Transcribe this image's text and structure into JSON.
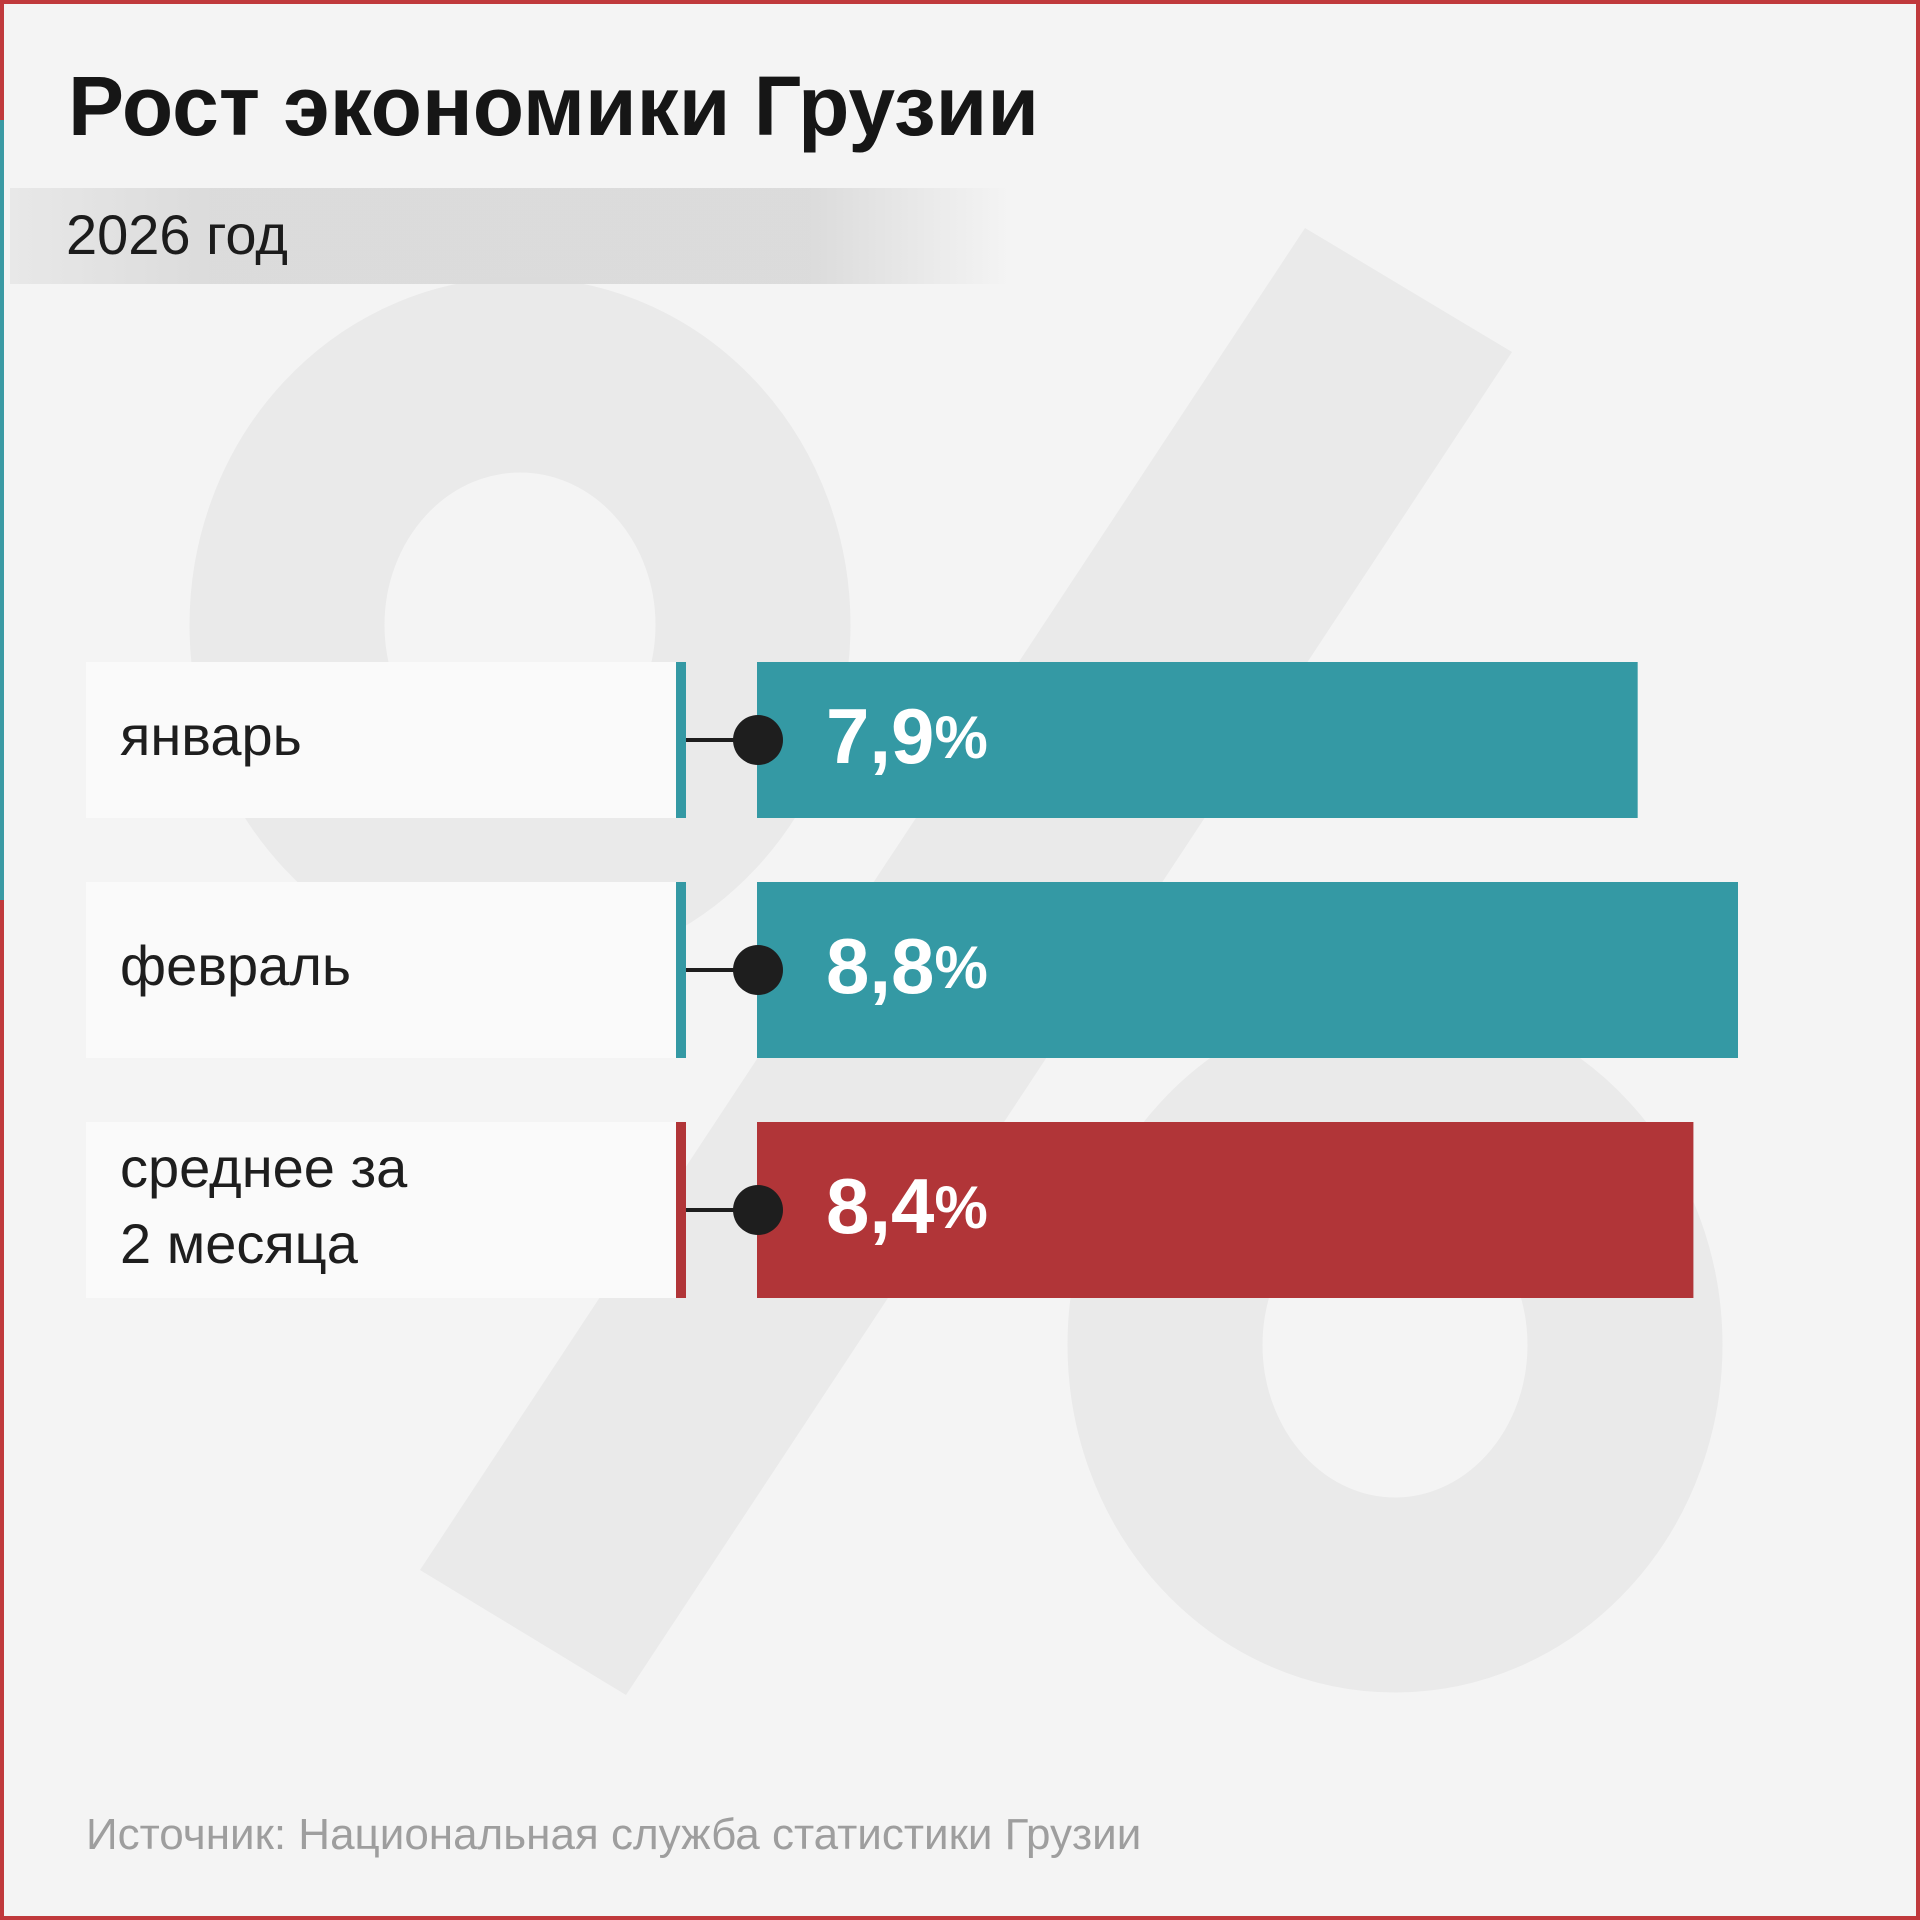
{
  "title": "Рост экономики Грузии",
  "subtitle": "2026 год",
  "source": "Источник: Национальная служба статистики Грузии",
  "colors": {
    "teal": "#3499a4",
    "red": "#b13538",
    "frame_red": "#c0393c",
    "frame_teal": "#3a9aa4",
    "dot": "#1e1e1e",
    "label_box": "#fafafa",
    "watermark": "#eaeaea"
  },
  "watermark_glyph": "percent-sign-icon",
  "chart_data": {
    "type": "bar",
    "orientation": "horizontal",
    "categories": [
      "январь",
      "февраль",
      "среднее за 2 месяца"
    ],
    "category_lines": [
      [
        "январь"
      ],
      [
        "февраль"
      ],
      [
        "среднее за",
        "2 месяца"
      ]
    ],
    "values": [
      7.9,
      8.8,
      8.4
    ],
    "data_labels": [
      "7,9%",
      "8,8%",
      "8,4%"
    ],
    "bar_colors": [
      "#3499a4",
      "#3499a4",
      "#b13538"
    ],
    "unit": "%"
  }
}
